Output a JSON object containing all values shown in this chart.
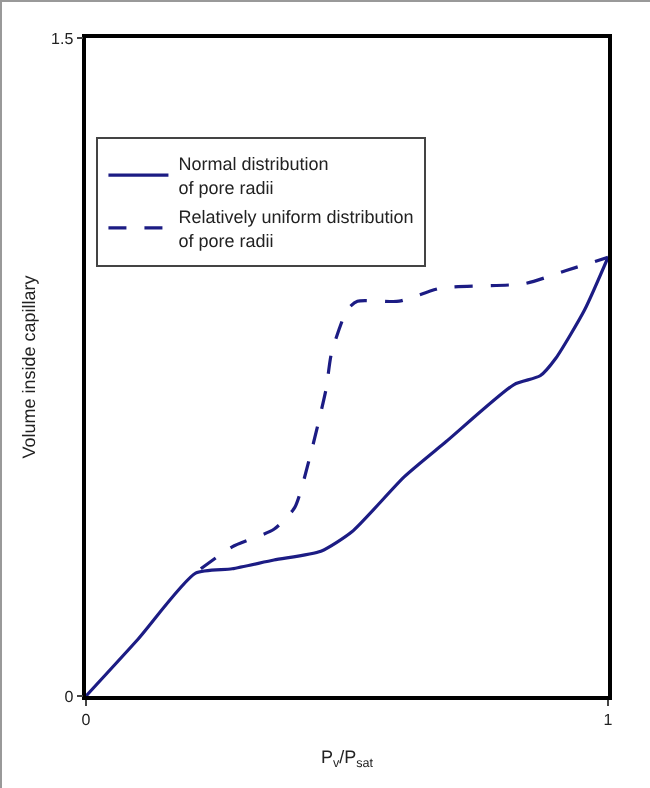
{
  "chart_data": {
    "type": "line",
    "xlabel": "P$_{v}$/P$_{sat}$",
    "ylabel": "Volume inside capillary",
    "xlim": [
      0,
      1
    ],
    "ylim": [
      0,
      1.5
    ],
    "xticks": [
      0,
      1
    ],
    "yticks": [
      0,
      1.5
    ],
    "legend": "top left",
    "marker": "none",
    "series": [
      {
        "name": "Normal distribution of pore radii",
        "color": "#1c1c84",
        "line_style": "solid",
        "x": [
          0,
          0.1,
          0.21,
          0.28,
          0.36,
          0.45,
          0.51,
          0.61,
          0.69,
          0.82,
          0.87,
          0.9,
          0.955,
          1.0
        ],
        "values": [
          0,
          0.13,
          0.28,
          0.29,
          0.31,
          0.33,
          0.375,
          0.5,
          0.58,
          0.71,
          0.73,
          0.77,
          0.88,
          1.0
        ]
      },
      {
        "name": "Relatively uniform distribution of pore radii",
        "color": "#1c1c84",
        "line_style": "dashed",
        "x": [
          0.22,
          0.28,
          0.36,
          0.4,
          0.43,
          0.46,
          0.47,
          0.5,
          0.52,
          0.6,
          0.68,
          0.84,
          0.92,
          1.0
        ],
        "values": [
          0.29,
          0.34,
          0.38,
          0.43,
          0.55,
          0.7,
          0.78,
          0.88,
          0.9,
          0.9,
          0.93,
          0.94,
          0.97,
          1.0
        ]
      }
    ]
  }
}
